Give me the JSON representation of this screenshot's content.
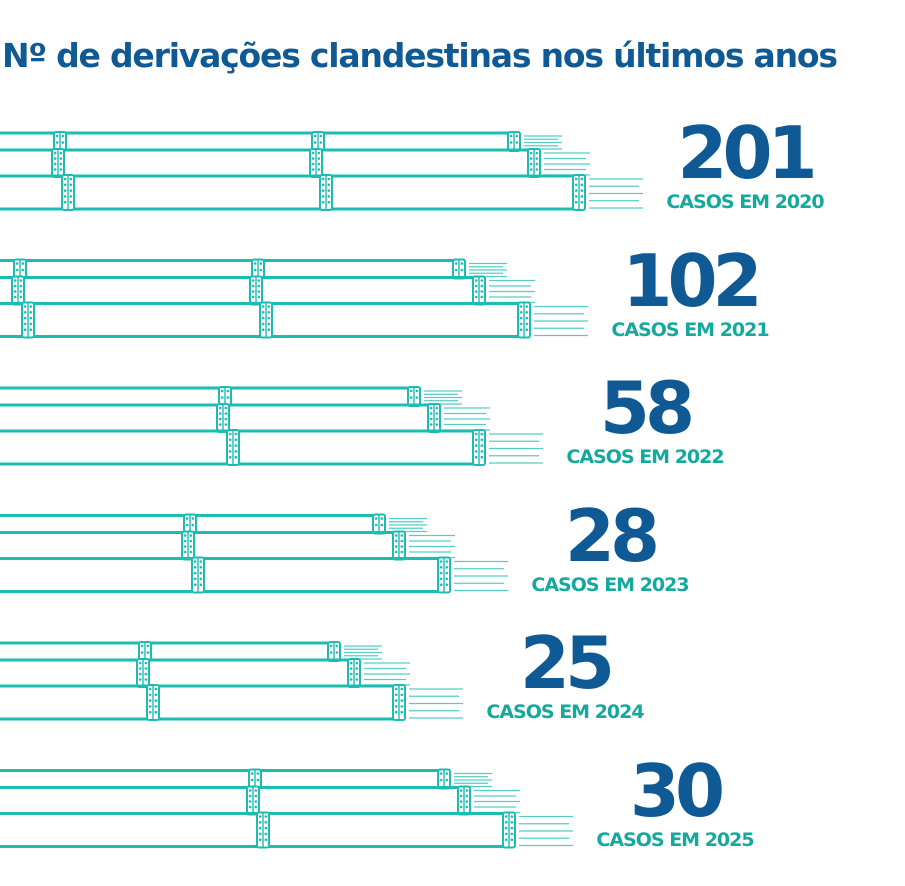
{
  "chart_data": {
    "type": "bar",
    "orientation": "horizontal",
    "title": "Nº de derivações clandestinas nos últimos anos",
    "xlabel": "",
    "ylabel": "",
    "categories": [
      "2020",
      "2021",
      "2022",
      "2023",
      "2024",
      "2025"
    ],
    "values": [
      201,
      102,
      58,
      28,
      25,
      30
    ],
    "labels": [
      {
        "value": "201",
        "caption": "CASOS EM 2020"
      },
      {
        "value": "102",
        "caption": "CASOS EM 2021"
      },
      {
        "value": "58",
        "caption": "CASOS EM 2022"
      },
      {
        "value": "28",
        "caption": "CASOS EM 2023"
      },
      {
        "value": "25",
        "caption": "CASOS EM 2024"
      },
      {
        "value": "30",
        "caption": "CASOS EM 2025"
      }
    ],
    "legend": "none",
    "grid": false,
    "colors": {
      "pipe": "#1cbcb0",
      "value_text": "#0f5a94",
      "caption_text": "#15a99d",
      "background": "#ffffff"
    }
  }
}
